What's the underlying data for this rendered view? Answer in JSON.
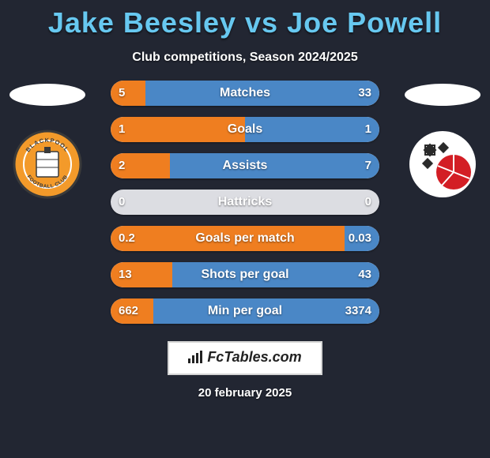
{
  "title_left": "Jake Beesley",
  "title_mid": " vs ",
  "title_right": "Joe Powell",
  "subtitle": "Club competitions, Season 2024/2025",
  "colors": {
    "background": "#222632",
    "title": "#67c8f0",
    "text": "#ffffff",
    "bar_track": "#dcdde2",
    "bar_left": "#ef7e20",
    "bar_right": "#4a87c6"
  },
  "left_badge": {
    "name": "blackpool-badge",
    "bg": "#f39a2a",
    "ring": "#3a3a3a",
    "top_text": "BLACKPOOL",
    "bottom_text": "FOOTBALL CLUB"
  },
  "right_badge": {
    "name": "rotherham-badge",
    "bg": "#ffffff",
    "ball": "#d31e25"
  },
  "rows": [
    {
      "label": "Matches",
      "left": "5",
      "right": "33",
      "left_pct": 13,
      "right_pct": 87
    },
    {
      "label": "Goals",
      "left": "1",
      "right": "1",
      "left_pct": 50,
      "right_pct": 50
    },
    {
      "label": "Assists",
      "left": "2",
      "right": "7",
      "left_pct": 22,
      "right_pct": 78
    },
    {
      "label": "Hattricks",
      "left": "0",
      "right": "0",
      "left_pct": 0,
      "right_pct": 0
    },
    {
      "label": "Goals per match",
      "left": "0.2",
      "right": "0.03",
      "left_pct": 87,
      "right_pct": 13
    },
    {
      "label": "Shots per goal",
      "left": "13",
      "right": "43",
      "left_pct": 23,
      "right_pct": 77
    },
    {
      "label": "Min per goal",
      "left": "662",
      "right": "3374",
      "left_pct": 16,
      "right_pct": 84
    }
  ],
  "footer_brand": "FcTables.com",
  "date": "20 february 2025"
}
